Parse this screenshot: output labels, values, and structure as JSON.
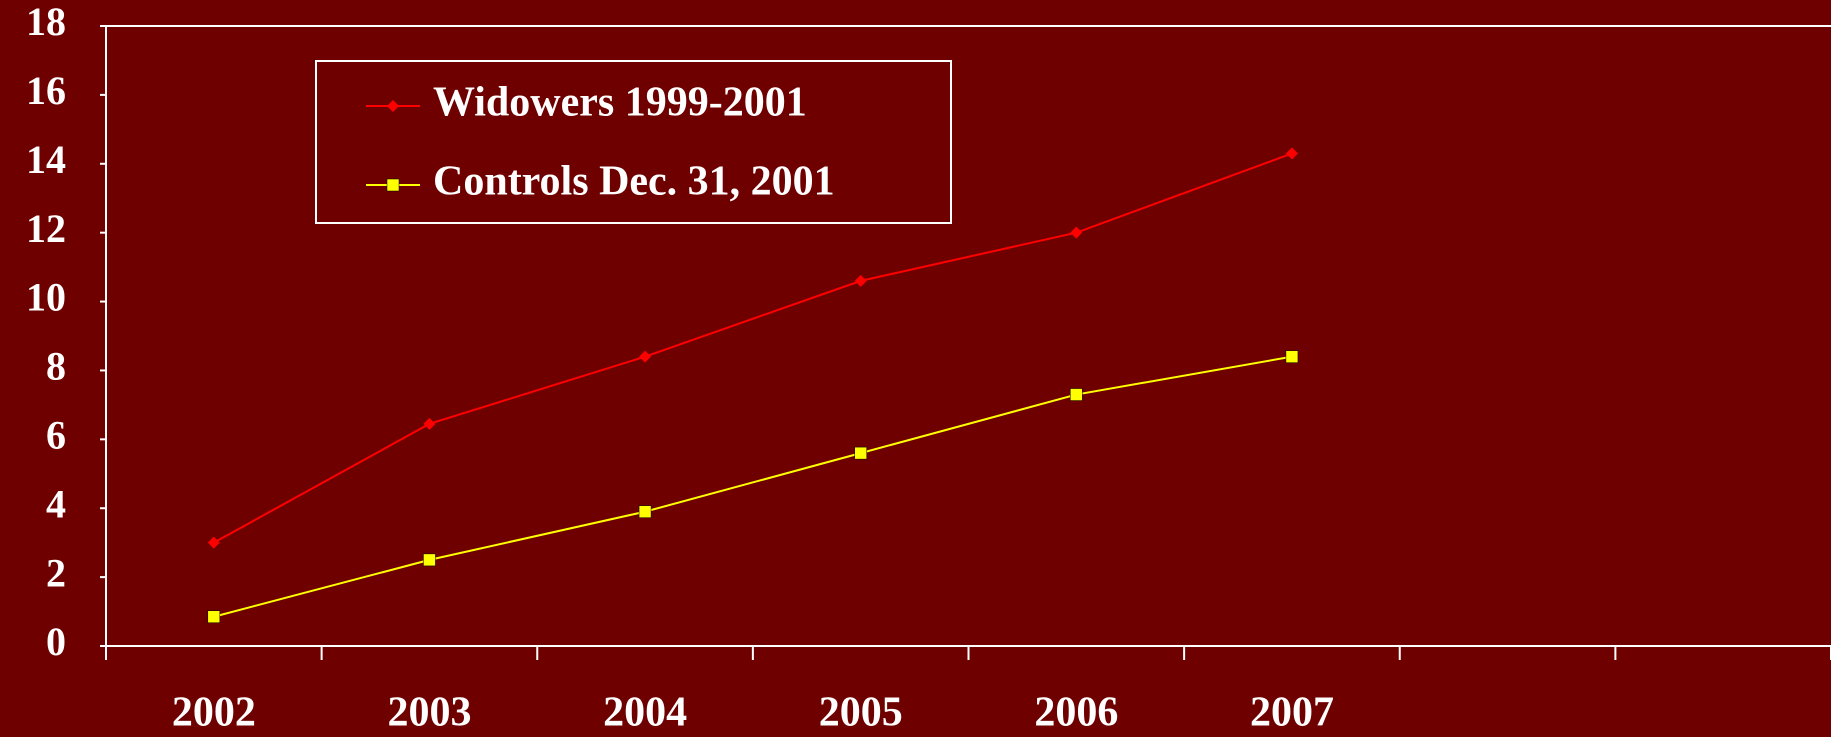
{
  "chart_data": {
    "type": "line",
    "categories": [
      "2002",
      "2003",
      "2004",
      "2005",
      "2006",
      "2007",
      null,
      null
    ],
    "series": [
      {
        "name": "Widowers 1999-2001",
        "color": "#ff0000",
        "marker": "diamond",
        "values": [
          3.0,
          6.45,
          8.4,
          10.6,
          12.0,
          14.3,
          null,
          null
        ]
      },
      {
        "name": "Controls Dec. 31, 2001",
        "color": "#ffff00",
        "marker": "square",
        "values": [
          0.85,
          2.5,
          3.9,
          5.6,
          7.3,
          8.4,
          null,
          null
        ]
      }
    ],
    "ylim": [
      0,
      18
    ],
    "yticks": [
      0,
      2,
      4,
      6,
      8,
      10,
      12,
      14,
      16,
      18
    ],
    "grid": false,
    "legend": "upper left"
  }
}
